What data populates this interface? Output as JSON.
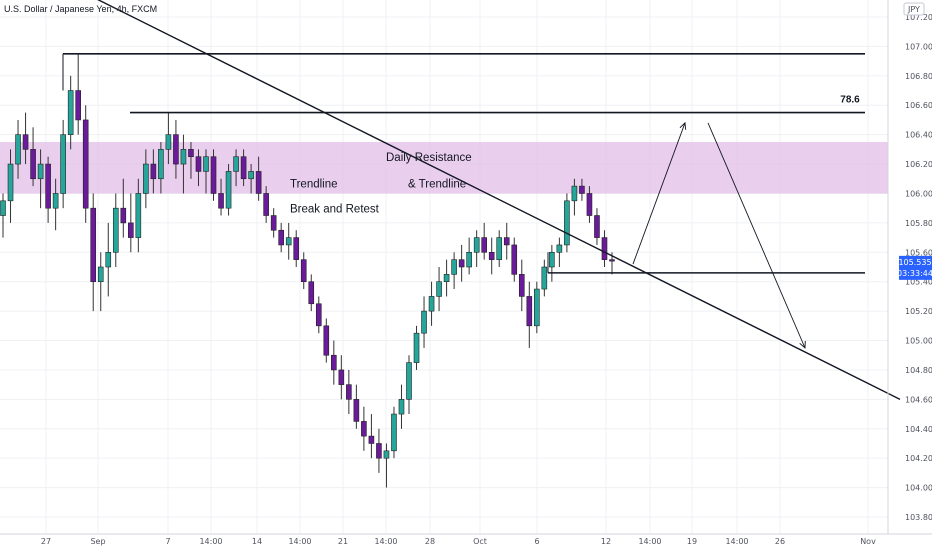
{
  "chart_data": {
    "type": "candlestick",
    "title": "U.S. Dollar / Japanese Yen, 4h, FXCM",
    "currency_badge": "JPY",
    "ylim": [
      103.7,
      107.15
    ],
    "y_ticks": [
      "107.200",
      "107.000",
      "106.800",
      "106.600",
      "106.400",
      "106.200",
      "106.000",
      "105.800",
      "105.600",
      "105.400",
      "105.200",
      "105.000",
      "104.800",
      "104.600",
      "104.400",
      "104.200",
      "104.000",
      "103.800"
    ],
    "x_ticks": [
      "27",
      "Sep",
      "7",
      "14:00",
      "14",
      "14:00",
      "21",
      "14:00",
      "28",
      "Oct",
      "6",
      "12",
      "14:00",
      "19",
      "14:00",
      "26",
      "Nov"
    ],
    "x_tick_pos": [
      46,
      98,
      168,
      211,
      257,
      300,
      343,
      386,
      430,
      480,
      537,
      606,
      650,
      692,
      737,
      780,
      868
    ],
    "last_price": "105.535",
    "countdown": "03:33:44",
    "price_label_color": "#2962ff",
    "resistance_zone": {
      "from": 106.0,
      "to": 106.35,
      "color": "#e1bee7"
    },
    "levels": [
      {
        "price": 106.95,
        "x_start": 63,
        "x_end": 865
      },
      {
        "price": 106.55,
        "x_start": 130,
        "x_end": 865,
        "label": "78.6"
      },
      {
        "price": 105.46,
        "x_start": 548,
        "x_end": 865
      }
    ],
    "trendline": {
      "p1": [
        0,
        107.65
      ],
      "p2": [
        900,
        104.6
      ]
    },
    "annotations": [
      {
        "text": "Daily Resistance",
        "x": 386,
        "price": 106.22
      },
      {
        "text": "& Trendline",
        "x": 408,
        "price": 106.04
      },
      {
        "text": "Trendline",
        "x": 290,
        "price": 106.04
      },
      {
        "text": "Break and Retest",
        "x": 290,
        "price": 105.87
      }
    ],
    "projection": [
      [
        633,
        105.52
      ],
      [
        685,
        106.48
      ],
      [
        708,
        106.48
      ],
      [
        805,
        104.95
      ]
    ],
    "candles": [
      [
        105.85,
        106.0,
        105.7,
        105.95
      ],
      [
        105.95,
        106.3,
        105.8,
        106.2
      ],
      [
        106.2,
        106.5,
        106.1,
        106.4
      ],
      [
        106.4,
        106.55,
        106.2,
        106.3
      ],
      [
        106.3,
        106.45,
        106.05,
        106.1
      ],
      [
        106.1,
        106.3,
        105.9,
        106.2
      ],
      [
        106.2,
        106.25,
        105.8,
        105.9
      ],
      [
        105.9,
        106.1,
        105.75,
        106.0
      ],
      [
        106.0,
        106.5,
        105.9,
        106.4
      ],
      [
        106.4,
        106.8,
        106.3,
        106.7
      ],
      [
        106.7,
        106.95,
        106.4,
        106.5
      ],
      [
        106.5,
        106.6,
        105.8,
        105.9
      ],
      [
        105.9,
        106.0,
        105.2,
        105.4
      ],
      [
        105.4,
        105.6,
        105.2,
        105.5
      ],
      [
        105.5,
        105.8,
        105.3,
        105.6
      ],
      [
        105.6,
        106.0,
        105.5,
        105.9
      ],
      [
        105.9,
        106.1,
        105.7,
        105.8
      ],
      [
        105.8,
        106.0,
        105.6,
        105.7
      ],
      [
        105.7,
        106.1,
        105.6,
        106.0
      ],
      [
        106.0,
        106.3,
        105.9,
        106.2
      ],
      [
        106.2,
        106.3,
        106.0,
        106.1
      ],
      [
        106.1,
        106.35,
        106.0,
        106.3
      ],
      [
        106.3,
        106.55,
        106.2,
        106.4
      ],
      [
        106.4,
        106.5,
        106.1,
        106.2
      ],
      [
        106.2,
        106.4,
        106.0,
        106.3
      ],
      [
        106.3,
        106.35,
        106.1,
        106.25
      ],
      [
        106.25,
        106.3,
        106.05,
        106.15
      ],
      [
        106.15,
        106.3,
        106.0,
        106.25
      ],
      [
        106.25,
        106.3,
        105.95,
        106.0
      ],
      [
        106.0,
        106.1,
        105.85,
        105.9
      ],
      [
        105.9,
        106.2,
        105.85,
        106.15
      ],
      [
        106.15,
        106.3,
        106.05,
        106.25
      ],
      [
        106.25,
        106.3,
        106.05,
        106.1
      ],
      [
        106.1,
        106.2,
        106.0,
        106.15
      ],
      [
        106.15,
        106.25,
        105.95,
        106.0
      ],
      [
        106.0,
        106.05,
        105.8,
        105.85
      ],
      [
        105.85,
        105.9,
        105.7,
        105.75
      ],
      [
        105.75,
        105.8,
        105.6,
        105.65
      ],
      [
        105.65,
        105.8,
        105.55,
        105.7
      ],
      [
        105.7,
        105.75,
        105.5,
        105.55
      ],
      [
        105.55,
        105.6,
        105.35,
        105.4
      ],
      [
        105.4,
        105.45,
        105.2,
        105.25
      ],
      [
        105.25,
        105.3,
        105.05,
        105.1
      ],
      [
        105.1,
        105.15,
        104.85,
        104.9
      ],
      [
        104.9,
        105.0,
        104.7,
        104.8
      ],
      [
        104.8,
        104.9,
        104.6,
        104.7
      ],
      [
        104.7,
        104.8,
        104.5,
        104.6
      ],
      [
        104.6,
        104.7,
        104.4,
        104.45
      ],
      [
        104.45,
        104.55,
        104.25,
        104.35
      ],
      [
        104.35,
        104.5,
        104.2,
        104.3
      ],
      [
        104.3,
        104.4,
        104.1,
        104.2
      ],
      [
        104.2,
        104.3,
        104.0,
        104.25
      ],
      [
        104.25,
        104.55,
        104.2,
        104.5
      ],
      [
        104.5,
        104.7,
        104.4,
        104.6
      ],
      [
        104.6,
        104.9,
        104.5,
        104.85
      ],
      [
        104.85,
        105.1,
        104.8,
        105.05
      ],
      [
        105.05,
        105.3,
        104.95,
        105.2
      ],
      [
        105.2,
        105.4,
        105.1,
        105.3
      ],
      [
        105.3,
        105.5,
        105.2,
        105.4
      ],
      [
        105.4,
        105.55,
        105.3,
        105.45
      ],
      [
        105.45,
        105.6,
        105.35,
        105.55
      ],
      [
        105.55,
        105.65,
        105.4,
        105.5
      ],
      [
        105.5,
        105.7,
        105.45,
        105.6
      ],
      [
        105.6,
        105.75,
        105.5,
        105.7
      ],
      [
        105.7,
        105.8,
        105.55,
        105.6
      ],
      [
        105.6,
        105.7,
        105.45,
        105.55
      ],
      [
        105.55,
        105.75,
        105.5,
        105.7
      ],
      [
        105.7,
        105.8,
        105.55,
        105.65
      ],
      [
        105.65,
        105.7,
        105.4,
        105.45
      ],
      [
        105.45,
        105.55,
        105.2,
        105.3
      ],
      [
        105.3,
        105.4,
        104.95,
        105.1
      ],
      [
        105.1,
        105.4,
        105.05,
        105.35
      ],
      [
        105.35,
        105.55,
        105.3,
        105.5
      ],
      [
        105.5,
        105.65,
        105.4,
        105.6
      ],
      [
        105.6,
        105.7,
        105.5,
        105.65
      ],
      [
        105.65,
        106.0,
        105.6,
        105.95
      ],
      [
        105.95,
        106.1,
        105.85,
        106.05
      ],
      [
        106.05,
        106.1,
        105.95,
        106.0
      ],
      [
        106.0,
        106.05,
        105.8,
        105.85
      ],
      [
        105.85,
        105.9,
        105.65,
        105.7
      ],
      [
        105.7,
        105.75,
        105.5,
        105.55
      ],
      [
        105.55,
        105.6,
        105.45,
        105.54
      ]
    ]
  }
}
